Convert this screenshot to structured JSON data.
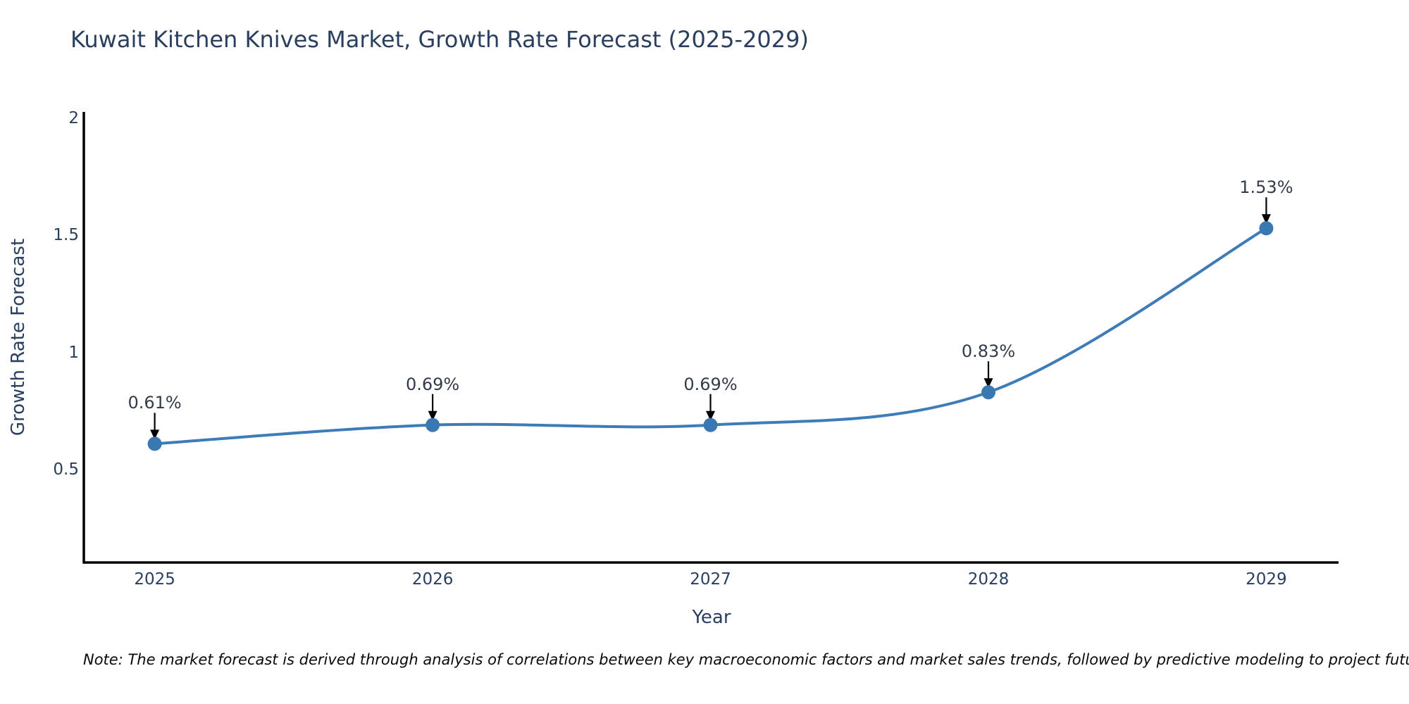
{
  "title": "Kuwait Kitchen Knives Market, Growth Rate Forecast (2025-2029)",
  "note": "Note: The market forecast is derived through analysis of correlations between key macroeconomic factors and market sales trends, followed by predictive modeling to project future sales",
  "chart_data": {
    "type": "line",
    "title": "Kuwait Kitchen Knives Market, Growth Rate Forecast (2025-2029)",
    "x": [
      2025,
      2026,
      2027,
      2028,
      2029
    ],
    "values": [
      0.61,
      0.69,
      0.69,
      0.83,
      1.53
    ],
    "point_labels": [
      "0.61%",
      "0.69%",
      "0.69%",
      "0.83%",
      "1.53%"
    ],
    "xlabel": "Year",
    "ylabel": "Growth Rate Forecast",
    "xtick_labels": [
      "2025",
      "2026",
      "2027",
      "2028",
      "2029"
    ],
    "ytick_values": [
      0.5,
      1,
      1.5,
      2
    ],
    "ytick_labels": [
      "0.5",
      "1",
      "1.5",
      "2"
    ],
    "xlim": [
      2024.745,
      2029.26
    ],
    "ylim": [
      0.103,
      2.027
    ],
    "curve": "spline",
    "grid": false,
    "legend": false,
    "colors": {
      "line": "#3d7cb8",
      "marker": "#3a78b4",
      "axis": "#000000",
      "arrow": "#000000",
      "tick_text": "#2a3f5f",
      "annotation_text": "#333c49",
      "title_text": "#2a3f5f"
    }
  }
}
